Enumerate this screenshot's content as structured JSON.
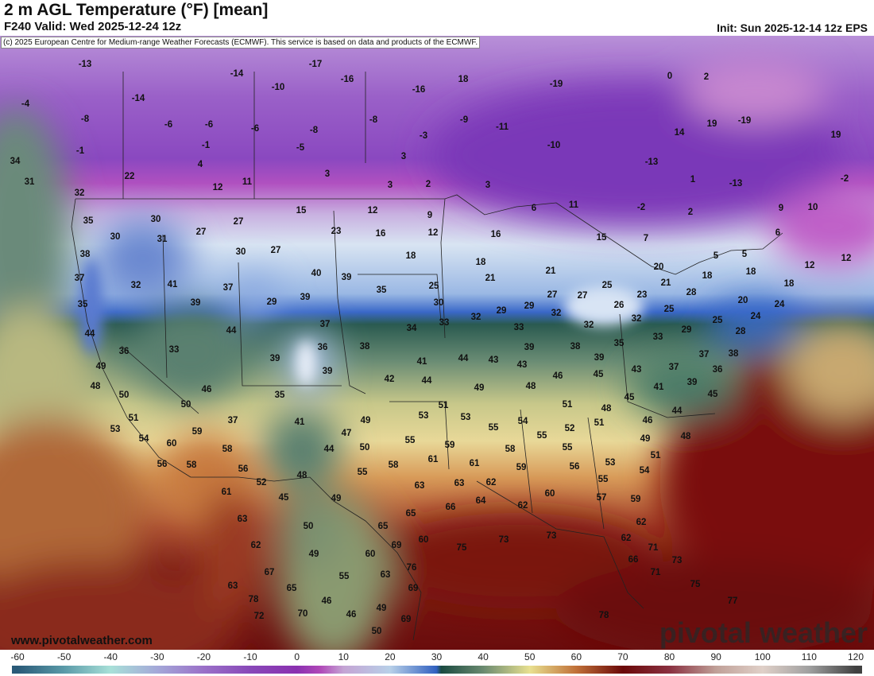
{
  "header": {
    "title": "2 m AGL Temperature (°F) [mean]",
    "subtitle": "F240 Valid: Wed 2025-12-24 12z",
    "init": "Init: Sun 2025-12-14 12z EPS"
  },
  "copyright": "(c) 2025 European Centre for Medium-range Weather Forecasts (ECMWF). This service is based on data and products of the ECMWF.",
  "footer": {
    "site": "www.pivotalweather.com",
    "watermark": "pivotal weather"
  },
  "colorbar": {
    "unit": "°F",
    "ticks": [
      "-60",
      "-50",
      "-40",
      "-30",
      "-20",
      "-10",
      "0",
      "10",
      "20",
      "30",
      "40",
      "50",
      "60",
      "70",
      "80",
      "90",
      "100",
      "110",
      "120"
    ],
    "colors": {
      "-60": "#2a5a78",
      "-50": "#5a9aa8",
      "-40": "#a8e0d8",
      "-30": "#a4a8d8",
      "-20": "#9a70c8",
      "-10": "#8848b8",
      "0": "#8a30b0",
      "5": "#b048b8",
      "10": "#c4a4d4",
      "20": "#b8d0e8",
      "30": "#3060c0",
      "31": "#1a4a40",
      "40": "#6a8a70",
      "50": "#e8e090",
      "60": "#c07038",
      "70": "#6a0808",
      "80": "#8a3040",
      "90": "#c0a098",
      "100": "#e0d0c8",
      "110": "#a0a0a0",
      "120": "#404040"
    }
  },
  "temperature_labels": [
    "-13",
    "-17",
    "-16",
    "18",
    "-19",
    "-10",
    "-16",
    "-14",
    "-14",
    "-4",
    "-8",
    "-6",
    "-6",
    "-6",
    "-8",
    "-8",
    "-9",
    "-11",
    "-3",
    "-1",
    "-1",
    "-5",
    "-10",
    "4",
    "3",
    "-13",
    "14",
    "19",
    "-19",
    "19",
    "22",
    "12",
    "11",
    "3",
    "3",
    "2",
    "3",
    "1",
    "-13",
    "-2",
    "34",
    "31",
    "32",
    "0",
    "2",
    "35",
    "30",
    "27",
    "15",
    "12",
    "9",
    "6",
    "11",
    "-2",
    "2",
    "9",
    "10",
    "30",
    "31",
    "27",
    "23",
    "16",
    "12",
    "16",
    "15",
    "7",
    "6",
    "38",
    "30",
    "27",
    "18",
    "18",
    "5",
    "5",
    "12",
    "12",
    "37",
    "32",
    "41",
    "37",
    "40",
    "39",
    "35",
    "25",
    "21",
    "21",
    "20",
    "18",
    "18",
    "18",
    "35",
    "39",
    "29",
    "39",
    "30",
    "25",
    "27",
    "27",
    "21",
    "28",
    "23",
    "26",
    "25",
    "20",
    "24",
    "32",
    "29",
    "29",
    "32",
    "44",
    "44",
    "37",
    "34",
    "33",
    "33",
    "32",
    "32",
    "29",
    "25",
    "24",
    "28",
    "36",
    "33",
    "36",
    "38",
    "33",
    "35",
    "38",
    "39",
    "39",
    "39",
    "41",
    "44",
    "43",
    "43",
    "39",
    "45",
    "43",
    "37",
    "37",
    "38",
    "36",
    "49",
    "48",
    "42",
    "44",
    "49",
    "46",
    "48",
    "41",
    "39",
    "45",
    "46",
    "35",
    "50",
    "50",
    "51",
    "51",
    "48",
    "45",
    "44",
    "46",
    "51",
    "37",
    "41",
    "49",
    "53",
    "53",
    "54",
    "52",
    "53",
    "59",
    "47",
    "55",
    "55",
    "51",
    "49",
    "48",
    "54",
    "60",
    "58",
    "50",
    "44",
    "55",
    "59",
    "58",
    "55",
    "51",
    "56",
    "58",
    "56",
    "58",
    "61",
    "61",
    "59",
    "56",
    "53",
    "54",
    "52",
    "48",
    "55",
    "63",
    "63",
    "62",
    "55",
    "61",
    "45",
    "49",
    "64",
    "60",
    "62",
    "57",
    "59",
    "66",
    "63",
    "50",
    "65",
    "65",
    "62",
    "62",
    "69",
    "60",
    "75",
    "73",
    "73",
    "62",
    "71",
    "49",
    "60",
    "76",
    "66",
    "73",
    "67",
    "55",
    "63",
    "71",
    "63",
    "65",
    "69",
    "75",
    "78",
    "46",
    "49",
    "77",
    "72",
    "70",
    "46",
    "69",
    "78",
    "50"
  ]
}
